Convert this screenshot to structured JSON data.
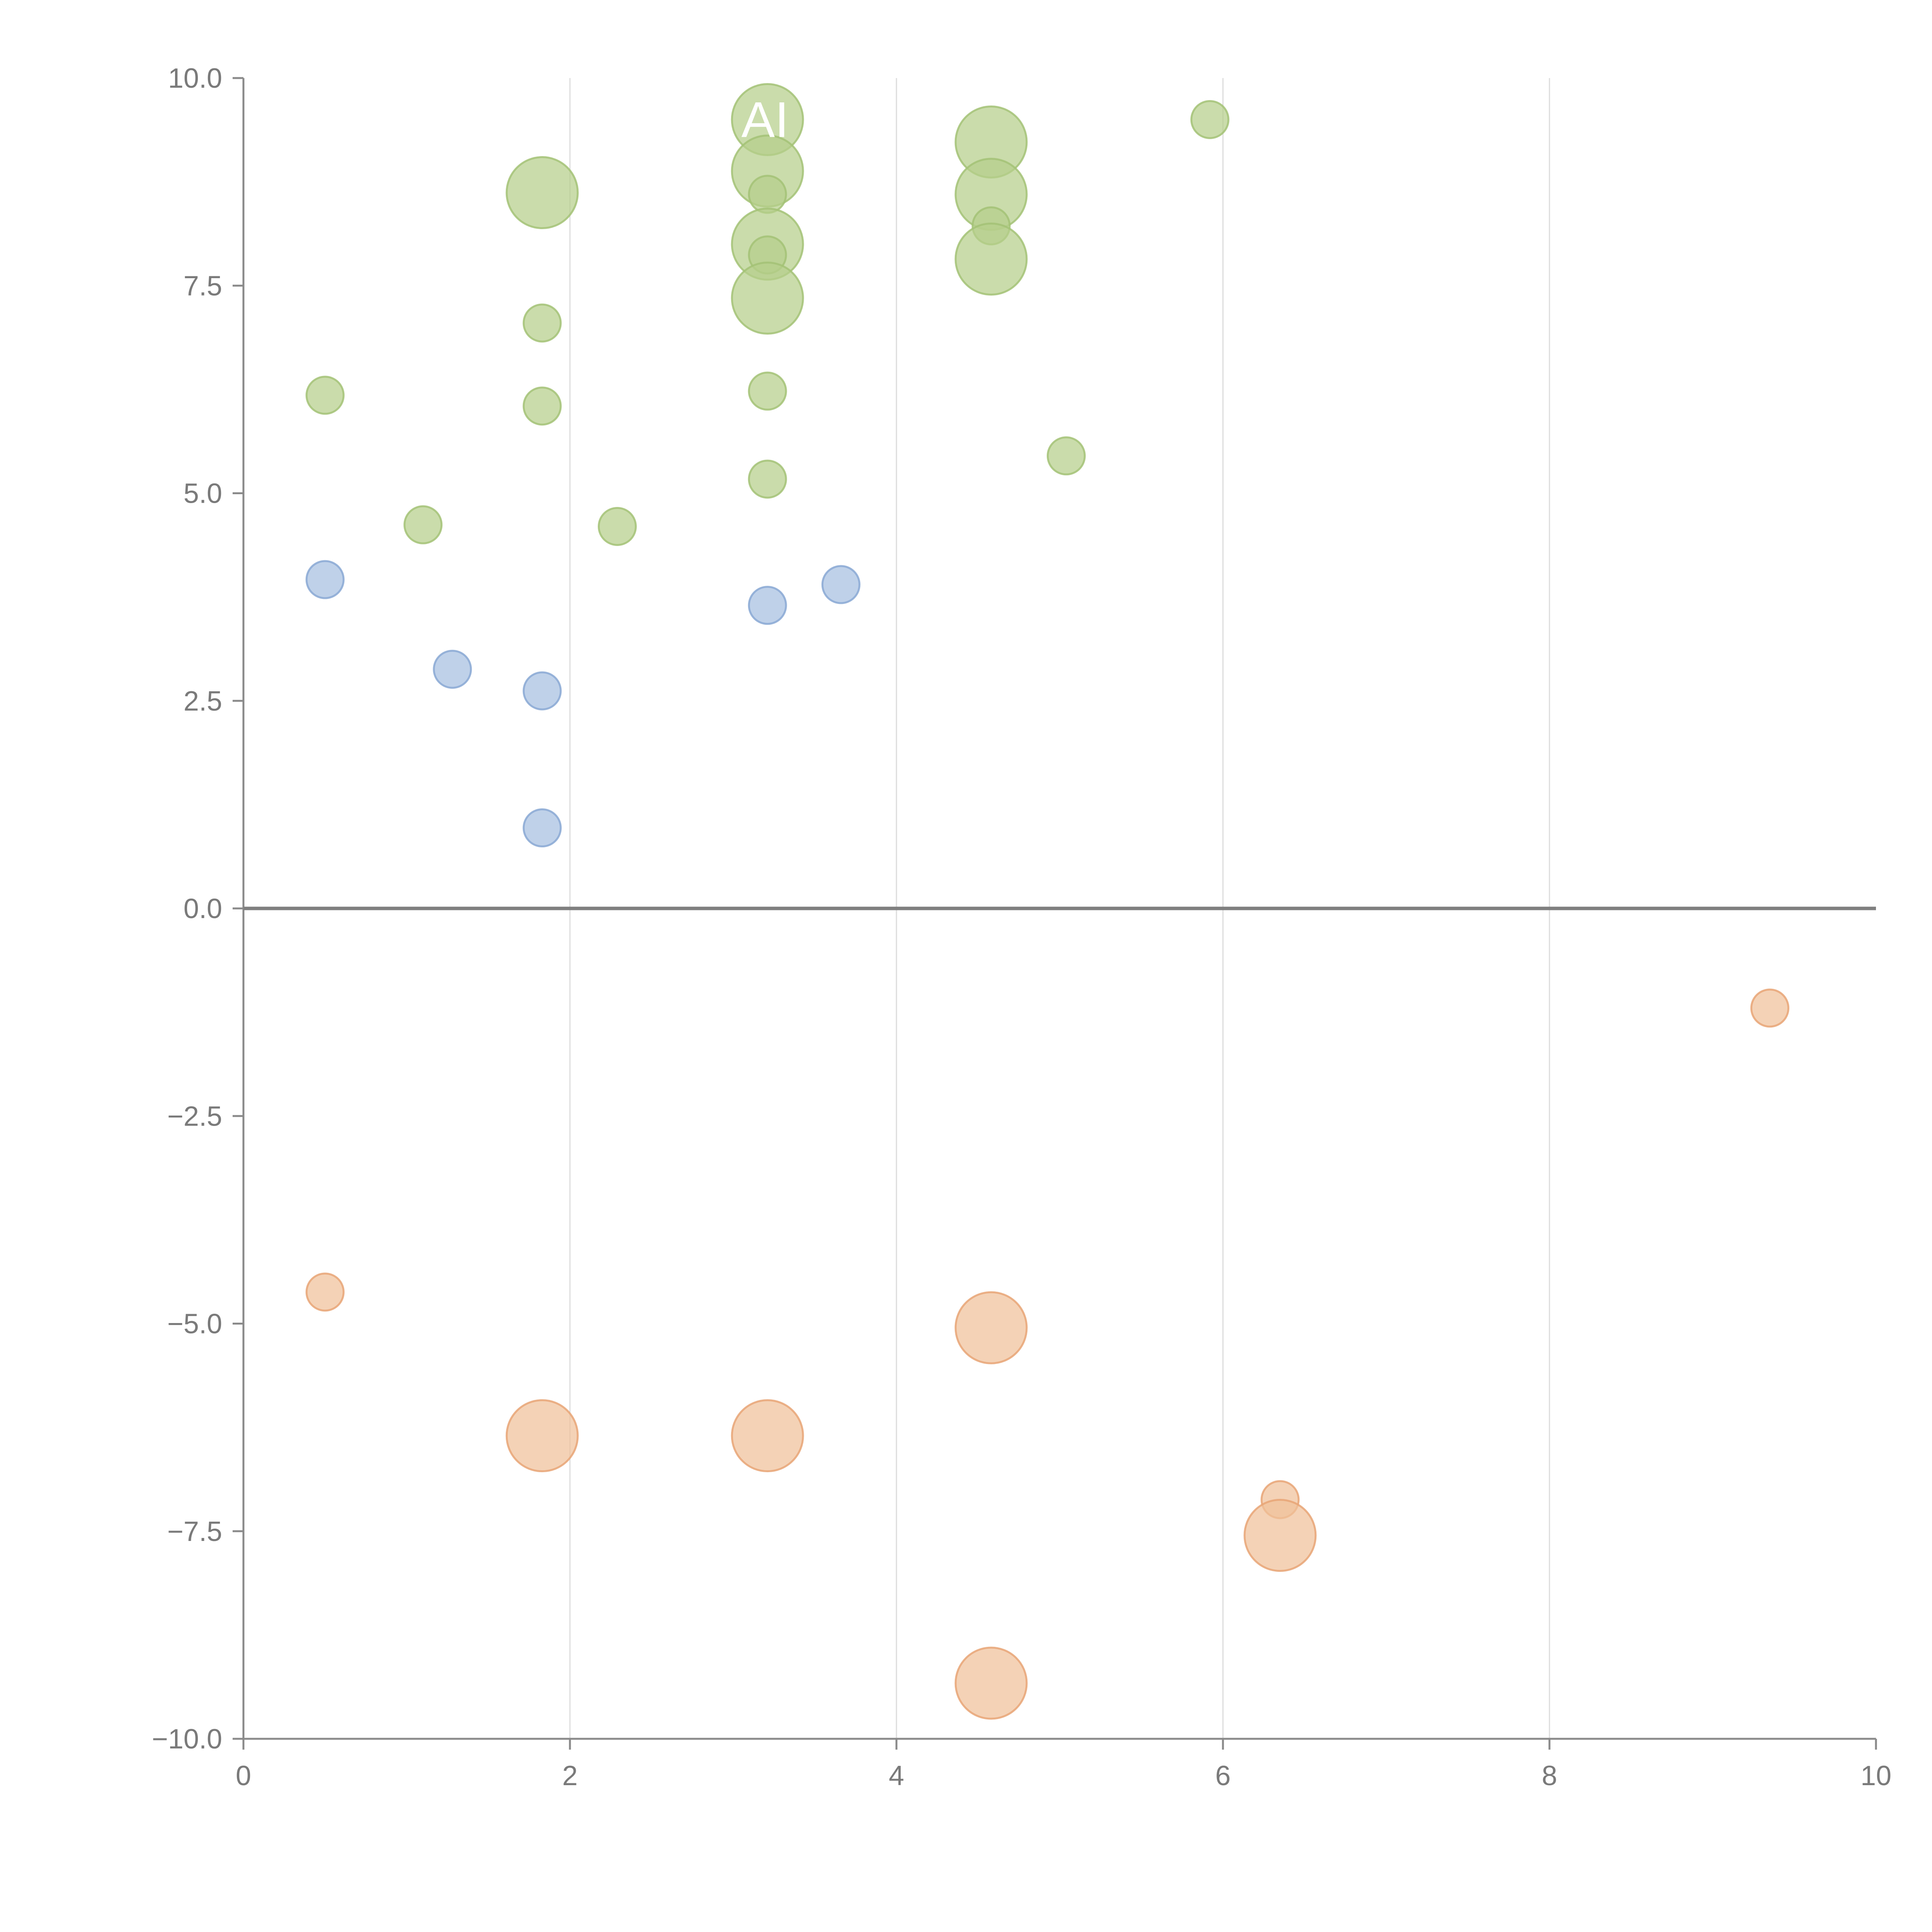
{
  "chart_data": {
    "type": "scatter",
    "title": "",
    "xlabel": "",
    "ylabel": "",
    "xlim": [
      0,
      10
    ],
    "ylim": [
      -10,
      10
    ],
    "grid": "vertical",
    "zero_line": true,
    "x_ticks": [
      0,
      2,
      4,
      6,
      8,
      10
    ],
    "x_tick_labels": [
      "0",
      "2",
      "4",
      "6",
      "8",
      "10"
    ],
    "y_ticks": [
      10,
      7.5,
      5,
      2.5,
      0,
      -2.5,
      -5,
      -7.5,
      -10
    ],
    "y_tick_labels": [
      "10.0",
      "7.5",
      "5.0",
      "2.5",
      "0.0",
      "−2.5",
      "−5.0",
      "−7.5",
      "−10.0"
    ],
    "annotation": "AI",
    "series": [
      {
        "name": "green",
        "color": "#b5cf8a",
        "stroke": "#a3c276",
        "points": [
          {
            "x": 0.5,
            "y": 6.18,
            "size": 1
          },
          {
            "x": 1.1,
            "y": 4.62,
            "size": 1
          },
          {
            "x": 1.83,
            "y": 7.05,
            "size": 1
          },
          {
            "x": 1.83,
            "y": 6.05,
            "size": 1
          },
          {
            "x": 1.83,
            "y": 8.62,
            "size": 2
          },
          {
            "x": 2.29,
            "y": 4.6,
            "size": 1
          },
          {
            "x": 3.21,
            "y": 9.5,
            "size": 2
          },
          {
            "x": 3.21,
            "y": 8.88,
            "size": 2
          },
          {
            "x": 3.21,
            "y": 8.6,
            "size": 1
          },
          {
            "x": 3.21,
            "y": 8.0,
            "size": 2
          },
          {
            "x": 3.21,
            "y": 7.87,
            "size": 1
          },
          {
            "x": 3.21,
            "y": 7.35,
            "size": 2
          },
          {
            "x": 3.21,
            "y": 6.23,
            "size": 1
          },
          {
            "x": 3.21,
            "y": 5.17,
            "size": 1
          },
          {
            "x": 4.58,
            "y": 9.23,
            "size": 2
          },
          {
            "x": 4.58,
            "y": 8.6,
            "size": 2
          },
          {
            "x": 4.58,
            "y": 8.22,
            "size": 1
          },
          {
            "x": 4.58,
            "y": 7.82,
            "size": 2
          },
          {
            "x": 5.04,
            "y": 5.45,
            "size": 1
          },
          {
            "x": 5.92,
            "y": 9.5,
            "size": 1
          }
        ]
      },
      {
        "name": "blue",
        "color": "#a6bfe0",
        "stroke": "#88a8d4",
        "points": [
          {
            "x": 0.5,
            "y": 3.96,
            "size": 1
          },
          {
            "x": 1.28,
            "y": 2.88,
            "size": 1
          },
          {
            "x": 1.83,
            "y": 2.62,
            "size": 1
          },
          {
            "x": 1.83,
            "y": 0.97,
            "size": 1
          },
          {
            "x": 3.21,
            "y": 3.65,
            "size": 1
          },
          {
            "x": 3.66,
            "y": 3.9,
            "size": 1
          }
        ]
      },
      {
        "name": "orange",
        "color": "#f0c19a",
        "stroke": "#e8a576",
        "points": [
          {
            "x": 0.5,
            "y": -4.62,
            "size": 1
          },
          {
            "x": 1.83,
            "y": -6.35,
            "size": 2
          },
          {
            "x": 3.21,
            "y": -6.35,
            "size": 2
          },
          {
            "x": 4.58,
            "y": -5.05,
            "size": 2
          },
          {
            "x": 4.58,
            "y": -9.33,
            "size": 2
          },
          {
            "x": 6.35,
            "y": -7.12,
            "size": 1
          },
          {
            "x": 6.35,
            "y": -7.55,
            "size": 2
          },
          {
            "x": 9.35,
            "y": -1.2,
            "size": 1
          }
        ]
      }
    ]
  }
}
